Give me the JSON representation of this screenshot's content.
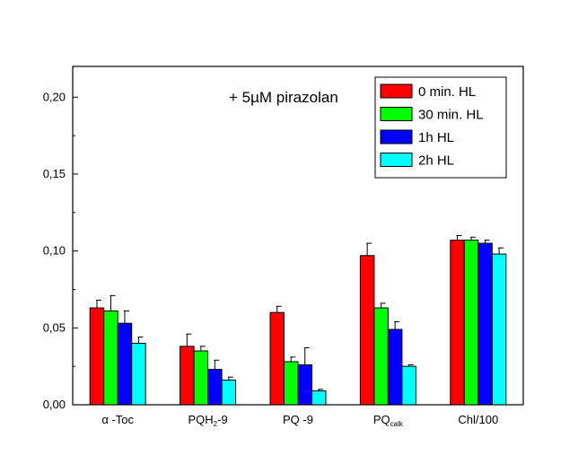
{
  "chart_data": {
    "type": "bar",
    "title": "",
    "xlabel": "",
    "ylabel": "",
    "annotation": "+ 5µM pirazolan",
    "categories": [
      {
        "main": "α -Toc",
        "sub": "",
        "suffix": ""
      },
      {
        "main": "PQH",
        "sub": "2",
        "suffix": "-9"
      },
      {
        "main": "PQ -9",
        "sub": "",
        "suffix": ""
      },
      {
        "main": "PQ",
        "sub": "calk",
        "suffix": ""
      },
      {
        "main": "Chl/100",
        "sub": "",
        "suffix": ""
      }
    ],
    "ylim": [
      0,
      0.22
    ],
    "yticks": [
      {
        "value": 0.0,
        "label": "0,00"
      },
      {
        "value": 0.05,
        "label": "0,05"
      },
      {
        "value": 0.1,
        "label": "0,10"
      },
      {
        "value": 0.15,
        "label": "0,15"
      },
      {
        "value": 0.2,
        "label": "0,20"
      }
    ],
    "legend_position": "top-right",
    "grid": false,
    "series": [
      {
        "name": "0 min. HL",
        "color": "#ff0000",
        "values": [
          0.063,
          0.038,
          0.06,
          0.097,
          0.107
        ],
        "errors": [
          0.005,
          0.008,
          0.004,
          0.008,
          0.003
        ]
      },
      {
        "name": "30 min. HL",
        "color": "#00ff00",
        "values": [
          0.061,
          0.035,
          0.028,
          0.063,
          0.107
        ],
        "errors": [
          0.01,
          0.003,
          0.003,
          0.003,
          0.002
        ]
      },
      {
        "name": "1h HL",
        "color": "#0000ff",
        "values": [
          0.053,
          0.023,
          0.026,
          0.049,
          0.105
        ],
        "errors": [
          0.008,
          0.006,
          0.011,
          0.005,
          0.002
        ]
      },
      {
        "name": "2h HL",
        "color": "#00ffff",
        "values": [
          0.04,
          0.016,
          0.009,
          0.025,
          0.098
        ],
        "errors": [
          0.004,
          0.002,
          0.001,
          0.001,
          0.004
        ]
      }
    ]
  }
}
